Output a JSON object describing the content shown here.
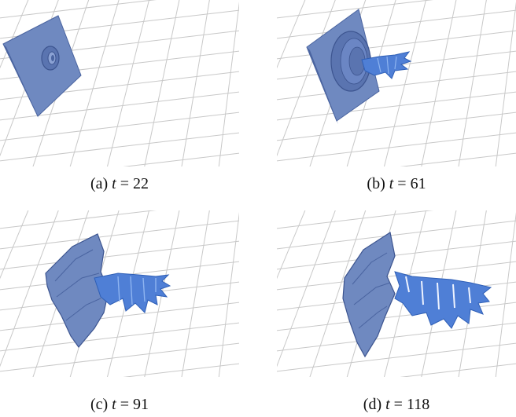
{
  "figure": {
    "panels": [
      {
        "id": "a",
        "label": "(a)",
        "var": "t",
        "eq": " = ",
        "value": "22"
      },
      {
        "id": "b",
        "label": "(b)",
        "var": "t",
        "eq": " = ",
        "value": "61"
      },
      {
        "id": "c",
        "label": "(c)",
        "var": "t",
        "eq": " = ",
        "value": "91"
      },
      {
        "id": "d",
        "label": "(d)",
        "var": "t",
        "eq": " = ",
        "value": "118"
      }
    ],
    "colors": {
      "surface": "#6f89c0",
      "surface_dark": "#4a64a0",
      "jet": "#4f7fd6",
      "grid": "#c8c8c8"
    }
  }
}
